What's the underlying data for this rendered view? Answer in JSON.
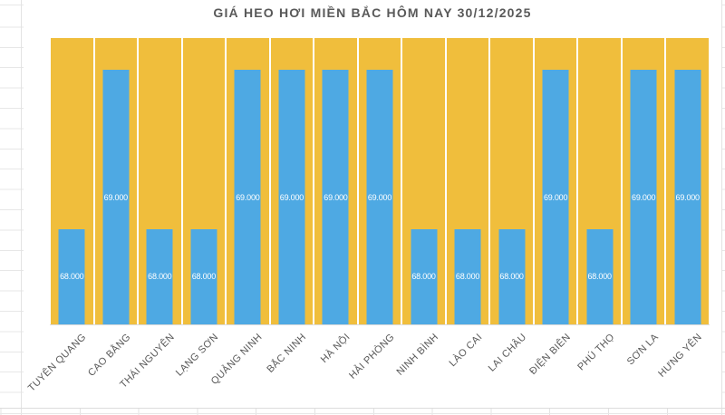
{
  "chart_data": {
    "type": "bar",
    "title": "GIÁ HEO HƠI MIỀN BẮC HÔM NAY 30/12/2025",
    "categories": [
      "TUYÊN QUANG",
      "CAO BẰNG",
      "THÁI NGUYÊN",
      "LẠNG SƠN",
      "QUẢNG NINH",
      "BẮC NINH",
      "HÀ NỘI",
      "HẢI PHÒNG",
      "NINH BÌNH",
      "LÀO CAI",
      "LAI CHÂU",
      "ĐIỆN BIÊN",
      "PHÚ THỌ",
      "SƠN LA",
      "HƯNG YÊN"
    ],
    "values": [
      68000,
      69000,
      68000,
      68000,
      69000,
      69000,
      69000,
      69000,
      68000,
      68000,
      68000,
      69000,
      68000,
      69000,
      69000
    ],
    "value_labels": [
      "68.000",
      "69.000",
      "68.000",
      "68.000",
      "69.000",
      "69.000",
      "69.000",
      "69.000",
      "68.000",
      "68.000",
      "68.000",
      "69.000",
      "68.000",
      "69.000",
      "69.000"
    ],
    "xlabel": "",
    "ylabel": "",
    "ylim": [
      67400,
      69200
    ],
    "grid": false,
    "legend": "none",
    "background_series_note": "full-height background column behind every bar",
    "colors": {
      "bar": "#4ea9e3",
      "background_bar": "#f0be3c",
      "value_label_text": "#ffffff",
      "title_text": "#595959",
      "axis_label_text": "#595959"
    }
  }
}
